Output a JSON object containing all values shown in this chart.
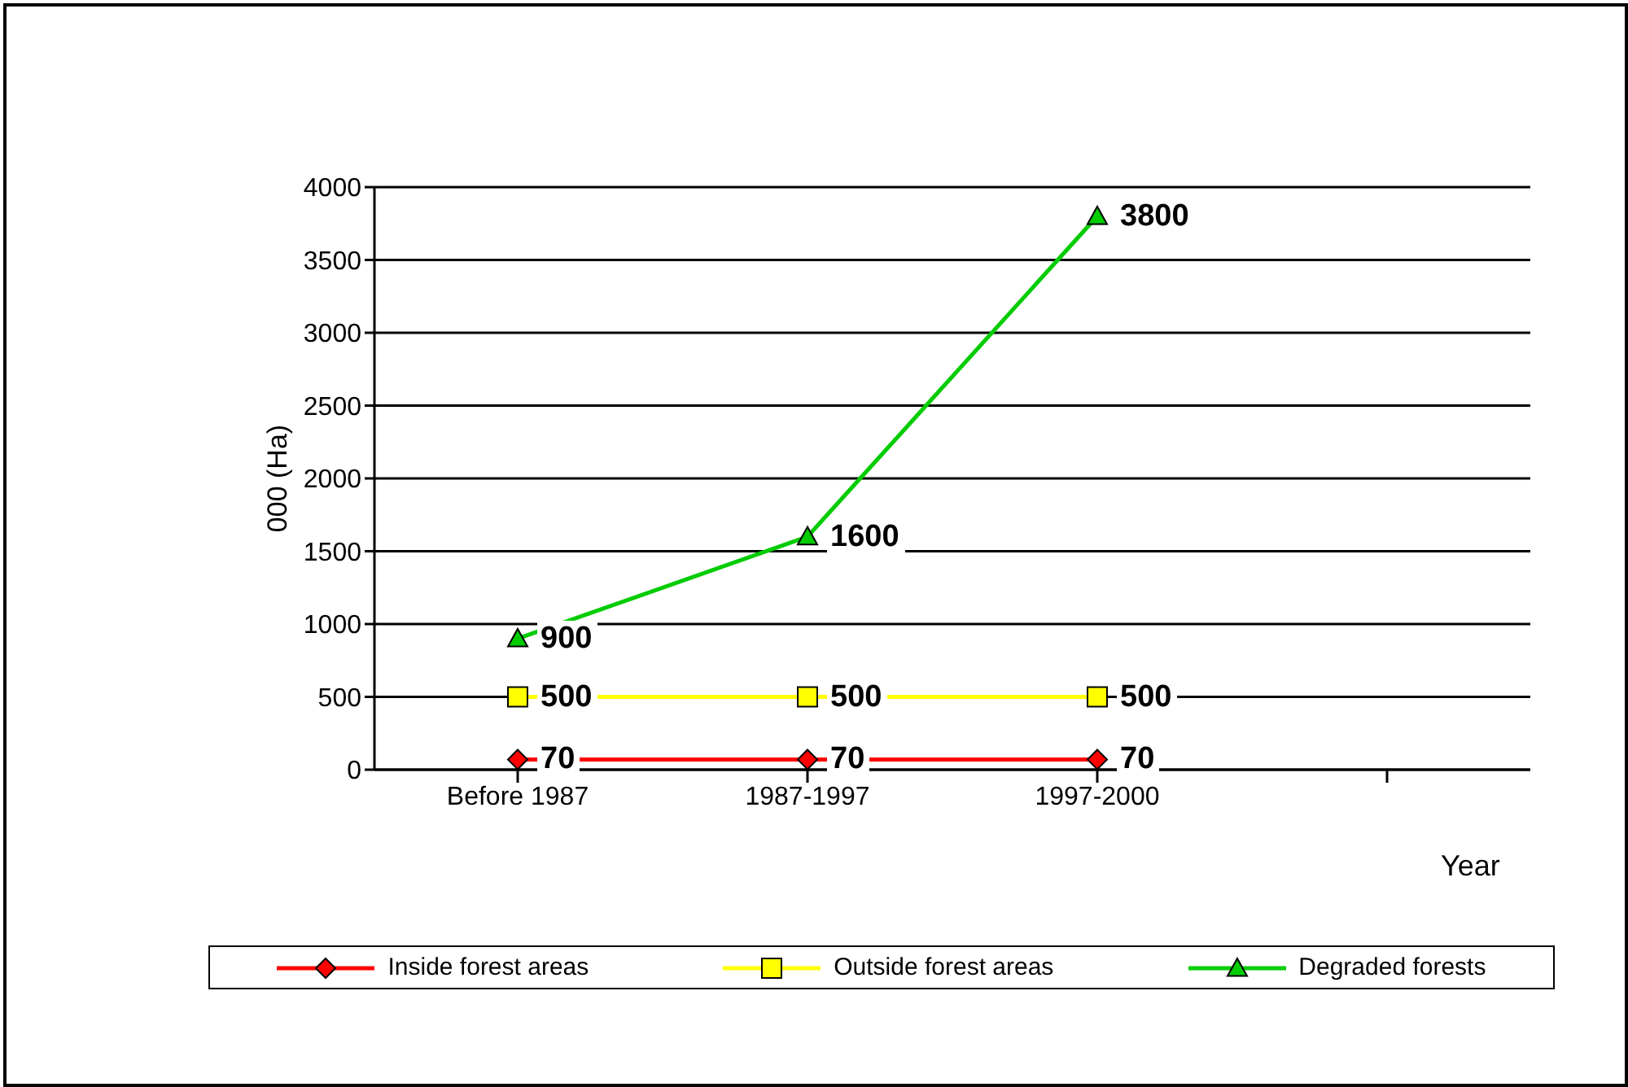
{
  "chart_data": {
    "type": "line",
    "ylabel": "000 (Ha)",
    "xlabel": "Year",
    "categories": [
      "Before 1987",
      "1987-1997",
      "1997-2000",
      null
    ],
    "series": [
      {
        "name": "Inside forest areas",
        "color": "#ff0000",
        "marker": "diamond",
        "values": [
          70,
          70,
          70,
          null
        ]
      },
      {
        "name": "Outside forest areas",
        "color": "#ffff00",
        "marker": "square",
        "values": [
          500,
          500,
          500,
          null
        ]
      },
      {
        "name": "Degraded forests",
        "color": "#00cc00",
        "marker": "triangle",
        "values": [
          900,
          1600,
          3800,
          null
        ]
      }
    ],
    "ylim": [
      0,
      4000
    ],
    "yticks": [
      0,
      500,
      1000,
      1500,
      2000,
      2500,
      3000,
      3500,
      4000
    ],
    "grid": "y",
    "legend": "bottom",
    "data_labels": true
  }
}
